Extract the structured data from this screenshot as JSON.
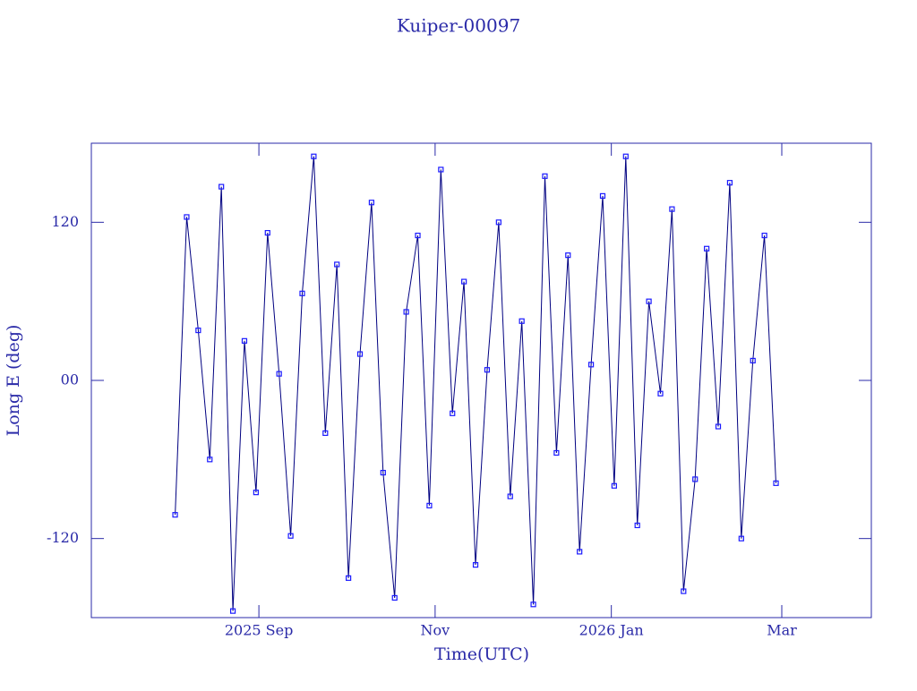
{
  "chart_data": {
    "type": "line",
    "title": "Kuiper-00097",
    "xlabel": "Time(UTC)",
    "ylabel": "Long E (deg)",
    "x": [
      "2025-08-03",
      "2025-08-07",
      "2025-08-11",
      "2025-08-15",
      "2025-08-19",
      "2025-08-23",
      "2025-08-27",
      "2025-08-31",
      "2025-09-04",
      "2025-09-08",
      "2025-09-12",
      "2025-09-16",
      "2025-09-20",
      "2025-09-24",
      "2025-09-28",
      "2025-10-02",
      "2025-10-06",
      "2025-10-10",
      "2025-10-14",
      "2025-10-18",
      "2025-10-22",
      "2025-10-26",
      "2025-10-30",
      "2025-11-03",
      "2025-11-07",
      "2025-11-11",
      "2025-11-15",
      "2025-11-19",
      "2025-11-23",
      "2025-11-27",
      "2025-12-01",
      "2025-12-05",
      "2025-12-09",
      "2025-12-13",
      "2025-12-17",
      "2025-12-21",
      "2025-12-25",
      "2025-12-29",
      "2026-01-02",
      "2026-01-06",
      "2026-01-10",
      "2026-01-14",
      "2026-01-18",
      "2026-01-22",
      "2026-01-26",
      "2026-01-30",
      "2026-02-03",
      "2026-02-07",
      "2026-02-11",
      "2026-02-15",
      "2026-02-19",
      "2026-02-23",
      "2026-02-27"
    ],
    "values": [
      -102,
      124,
      38,
      -60,
      147,
      -175,
      30,
      -85,
      112,
      5,
      -118,
      66,
      170,
      -40,
      88,
      -150,
      20,
      135,
      -70,
      -165,
      52,
      110,
      -95,
      160,
      -25,
      75,
      -140,
      8,
      120,
      -88,
      45,
      -170,
      155,
      -55,
      95,
      -130,
      12,
      140,
      -80,
      170,
      -110,
      60,
      -10,
      130,
      -160,
      -75,
      100,
      -35,
      150,
      -120,
      15,
      110,
      -78
    ],
    "color": "#1a1aff",
    "line_color": "#000080",
    "xlim": [
      "2025-07-05",
      "2026-04-01"
    ],
    "xticks": [
      {
        "value": "2025-09-01",
        "label": "2025 Sep"
      },
      {
        "value": "2025-11-01",
        "label": "Nov"
      },
      {
        "value": "2026-01-01",
        "label": "2026 Jan"
      },
      {
        "value": "2026-03-01",
        "label": "Mar"
      }
    ],
    "ylim": [
      -180,
      180
    ],
    "yticks": [
      -120,
      {
        "value": 0,
        "label": "00"
      },
      120
    ]
  }
}
